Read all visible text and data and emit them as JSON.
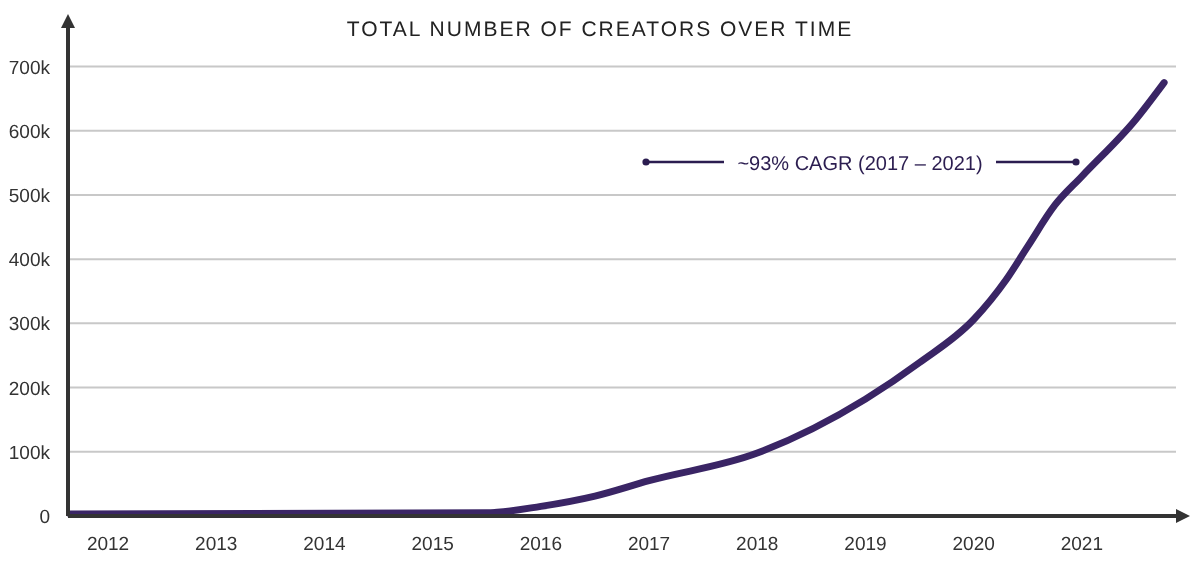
{
  "chart_data": {
    "type": "line",
    "title": "TOTAL NUMBER OF CREATORS OVER TIME",
    "x": [
      2011.65,
      2015.5,
      2016,
      2016.5,
      2017,
      2018,
      2019,
      2019.5,
      2020,
      2020.3,
      2020.5,
      2020.75,
      2021,
      2021.5,
      2021.76
    ],
    "series": [
      {
        "color": "#3a2565",
        "values": [
          3000,
          5000,
          15000,
          31000,
          55000,
          98000,
          182000,
          239000,
          306000,
          368000,
          420000,
          484000,
          529000,
          618000,
          675000
        ]
      }
    ],
    "xlim": [
      2011.63,
      2021.87
    ],
    "xticks": [
      2012,
      2013,
      2014,
      2015,
      2016,
      2017,
      2018,
      2019,
      2020,
      2021
    ],
    "ylim": [
      0,
      760000
    ],
    "yticks": [
      0,
      {
        "value": 100000,
        "label": "100k"
      },
      {
        "value": 200000,
        "label": "200k"
      },
      {
        "value": 300000,
        "label": "300k"
      },
      {
        "value": 400000,
        "label": "400k"
      },
      {
        "value": 500000,
        "label": "500k"
      },
      {
        "value": 600000,
        "label": "600k"
      },
      {
        "value": 700000,
        "label": "700k"
      }
    ],
    "grid": "y",
    "marker": "none",
    "line_style": "solid",
    "annotations": [
      "~93% CAGR (2017 – 2021)"
    ]
  }
}
